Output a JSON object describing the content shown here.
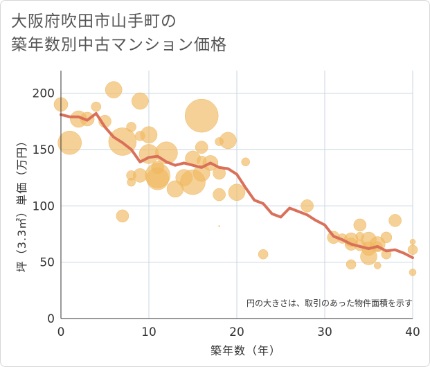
{
  "title_lines": [
    "大阪府吹田市山手町の",
    "築年数別中古マンション価格"
  ],
  "colors": {
    "bubble": "#f0b860",
    "line": "#d9705a",
    "grid": "#c8d6e0"
  },
  "chart_data": {
    "type": "scatter",
    "title": "大阪府吹田市山手町の築年数別中古マンション価格",
    "xlabel": "築年数（年）",
    "ylabel": "坪（3.3㎡）単価（万円）",
    "xlim": [
      0,
      40
    ],
    "ylim": [
      0,
      220
    ],
    "xticks": [
      0,
      10,
      20,
      30,
      40
    ],
    "yticks": [
      0,
      50,
      100,
      150,
      200
    ],
    "grid": true,
    "note": "円の大きさは、取引のあった物件面積を示す",
    "series": [
      {
        "type": "scatter",
        "points": [
          {
            "x": 0,
            "y": 190,
            "s": 10
          },
          {
            "x": 1,
            "y": 156,
            "s": 17
          },
          {
            "x": 2,
            "y": 177,
            "s": 12
          },
          {
            "x": 3,
            "y": 177,
            "s": 10
          },
          {
            "x": 4,
            "y": 188,
            "s": 7
          },
          {
            "x": 5,
            "y": 175,
            "s": 9
          },
          {
            "x": 6,
            "y": 203,
            "s": 12
          },
          {
            "x": 7,
            "y": 157,
            "s": 20
          },
          {
            "x": 7,
            "y": 91,
            "s": 9
          },
          {
            "x": 8,
            "y": 170,
            "s": 7
          },
          {
            "x": 8,
            "y": 127,
            "s": 7
          },
          {
            "x": 8,
            "y": 121,
            "s": 6
          },
          {
            "x": 9,
            "y": 193,
            "s": 12
          },
          {
            "x": 9,
            "y": 162,
            "s": 7
          },
          {
            "x": 9,
            "y": 127,
            "s": 10
          },
          {
            "x": 10,
            "y": 163,
            "s": 12
          },
          {
            "x": 10,
            "y": 146,
            "s": 14
          },
          {
            "x": 11,
            "y": 134,
            "s": 9
          },
          {
            "x": 11,
            "y": 127,
            "s": 18
          },
          {
            "x": 11,
            "y": 124,
            "s": 16
          },
          {
            "x": 12,
            "y": 147,
            "s": 16
          },
          {
            "x": 13,
            "y": 115,
            "s": 12
          },
          {
            "x": 14,
            "y": 125,
            "s": 12
          },
          {
            "x": 15,
            "y": 142,
            "s": 11
          },
          {
            "x": 15,
            "y": 121,
            "s": 18
          },
          {
            "x": 16,
            "y": 180,
            "s": 24
          },
          {
            "x": 16,
            "y": 152,
            "s": 9
          },
          {
            "x": 16,
            "y": 140,
            "s": 7
          },
          {
            "x": 16,
            "y": 129,
            "s": 12
          },
          {
            "x": 17,
            "y": 138,
            "s": 11
          },
          {
            "x": 18,
            "y": 157,
            "s": 6
          },
          {
            "x": 18,
            "y": 129,
            "s": 9
          },
          {
            "x": 18,
            "y": 110,
            "s": 9
          },
          {
            "x": 18,
            "y": 82,
            "s": 1
          },
          {
            "x": 19,
            "y": 158,
            "s": 12
          },
          {
            "x": 20,
            "y": 112,
            "s": 12
          },
          {
            "x": 21,
            "y": 139,
            "s": 6
          },
          {
            "x": 23,
            "y": 57,
            "s": 7
          },
          {
            "x": 28,
            "y": 100,
            "s": 9
          },
          {
            "x": 31,
            "y": 72,
            "s": 9
          },
          {
            "x": 32,
            "y": 71,
            "s": 7
          },
          {
            "x": 33,
            "y": 70,
            "s": 10
          },
          {
            "x": 33,
            "y": 66,
            "s": 9
          },
          {
            "x": 33,
            "y": 48,
            "s": 7
          },
          {
            "x": 34,
            "y": 83,
            "s": 9
          },
          {
            "x": 34,
            "y": 73,
            "s": 6
          },
          {
            "x": 34,
            "y": 65,
            "s": 8
          },
          {
            "x": 35,
            "y": 70,
            "s": 11
          },
          {
            "x": 35,
            "y": 62,
            "s": 10
          },
          {
            "x": 35,
            "y": 55,
            "s": 12
          },
          {
            "x": 36,
            "y": 66,
            "s": 11
          },
          {
            "x": 36,
            "y": 64,
            "s": 7
          },
          {
            "x": 36,
            "y": 47,
            "s": 5
          },
          {
            "x": 37,
            "y": 72,
            "s": 8
          },
          {
            "x": 37,
            "y": 57,
            "s": 7
          },
          {
            "x": 38,
            "y": 87,
            "s": 9
          },
          {
            "x": 40,
            "y": 68,
            "s": 4
          },
          {
            "x": 40,
            "y": 61,
            "s": 7
          },
          {
            "x": 40,
            "y": 41,
            "s": 5
          }
        ]
      },
      {
        "type": "line",
        "x": [
          0,
          1,
          2,
          3,
          4,
          5,
          6,
          7,
          8,
          9,
          10,
          11,
          12,
          13,
          14,
          15,
          16,
          17,
          18,
          19,
          20,
          21,
          22,
          23,
          24,
          25,
          26,
          27,
          28,
          29,
          30,
          31,
          32,
          33,
          34,
          35,
          36,
          37,
          38,
          39,
          40
        ],
        "y": [
          181,
          179,
          179,
          176,
          182,
          170,
          161,
          156,
          150,
          139,
          143,
          144,
          139,
          136,
          138,
          136,
          134,
          138,
          134,
          133,
          128,
          116,
          105,
          102,
          93,
          90,
          98,
          95,
          92,
          87,
          83,
          73,
          70,
          66,
          64,
          62,
          64,
          60,
          61,
          58,
          54
        ]
      }
    ]
  }
}
